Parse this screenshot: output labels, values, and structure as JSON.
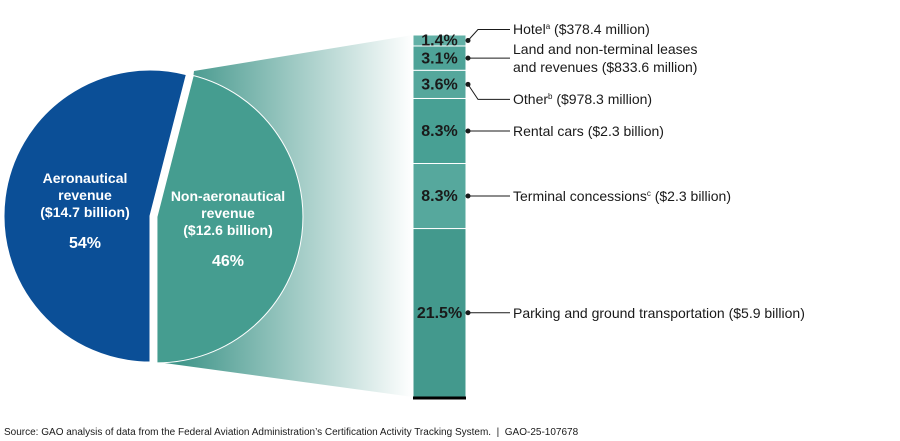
{
  "source": "Source: GAO analysis of data from the Federal Aviation Administration’s Certification Activity Tracking System.  |  GAO-25-107678",
  "chart_data": [
    {
      "type": "pie",
      "categories": [
        "Aeronautical revenue",
        "Non-aeronautical revenue"
      ],
      "amounts": [
        "($14.7 billion)",
        "($12.6 billion)"
      ],
      "values": [
        54,
        46
      ],
      "value_labels": [
        "54%",
        "46%"
      ],
      "colors": [
        "#0b4f97",
        "#459d90"
      ]
    },
    {
      "type": "stacked-bar",
      "series": [
        {
          "name": "Parking and ground transportation",
          "amount": "($5.9 billion)",
          "color": "#43998d",
          "values": [
            21.5
          ],
          "value_labels": [
            "21.5%"
          ]
        },
        {
          "name": "Terminal concessions",
          "note": "c",
          "amount": "($2.3 billion)",
          "color": "#56a89d",
          "values": [
            8.3
          ],
          "value_labels": [
            "8.3%"
          ]
        },
        {
          "name": "Rental cars",
          "amount": "($2.3 billion)",
          "color": "#48a094",
          "values": [
            8.3
          ],
          "value_labels": [
            "8.3%"
          ]
        },
        {
          "name": "Other",
          "note": "b",
          "amount": "($978.3 million)",
          "color": "#55a79c",
          "values": [
            3.6
          ],
          "value_labels": [
            "3.6%"
          ]
        },
        {
          "name": "Land and non-terminal leases and revenues",
          "amount": "($833.6 million)",
          "color": "#4ea398",
          "values": [
            3.1
          ],
          "value_labels": [
            "3.1%"
          ]
        },
        {
          "name": "Hotel",
          "note": "a",
          "amount": "($378.4 million)",
          "color": "#62b0a6",
          "values": [
            1.4
          ],
          "value_labels": [
            "1.4%"
          ]
        }
      ]
    }
  ]
}
